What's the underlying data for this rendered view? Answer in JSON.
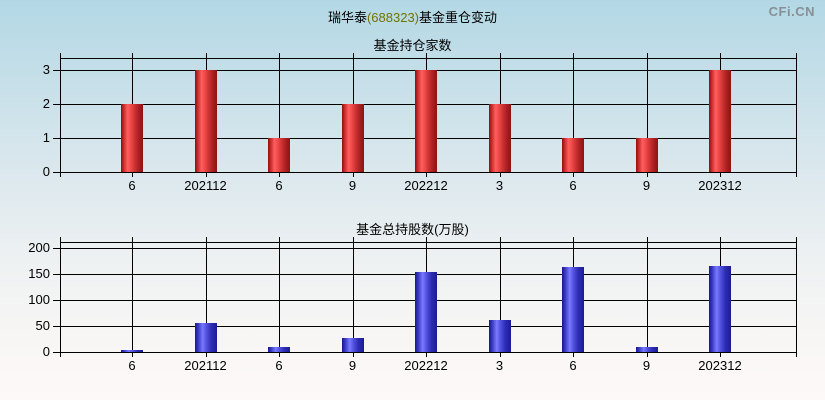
{
  "header": {
    "title_prefix": "瑞华泰",
    "title_code": "(688323)",
    "title_suffix": "基金重仓变动",
    "logo": "CFi.CN"
  },
  "colors": {
    "background_top": "#b3d8e5",
    "background_bottom": "#fdf9f8",
    "grid": "#000000",
    "title_code_accent": "#737300",
    "logo_gray": "#879097",
    "red_bar": "#e03434",
    "blue_bar": "#3a3acd"
  },
  "chart_data": [
    {
      "type": "bar",
      "title": "基金持仓家数",
      "categories": [
        "6",
        "202112",
        "6",
        "9",
        "202212",
        "3",
        "6",
        "9",
        "202312"
      ],
      "values": [
        2,
        3,
        1,
        2,
        3,
        2,
        1,
        1,
        3
      ],
      "xlabel": "",
      "ylabel": "",
      "ylim": [
        0,
        3
      ],
      "yticks": [
        0,
        1,
        2,
        3
      ],
      "grid": "on",
      "legend": "none",
      "bar_style": "red"
    },
    {
      "type": "bar",
      "title": "基金总持股数(万股)",
      "categories": [
        "6",
        "202112",
        "6",
        "9",
        "202212",
        "3",
        "6",
        "9",
        "202312"
      ],
      "values": [
        2,
        56,
        10,
        27,
        153,
        61,
        163,
        10,
        166
      ],
      "xlabel": "",
      "ylabel": "",
      "ylim": [
        0,
        200
      ],
      "yticks": [
        0,
        50,
        100,
        150,
        200
      ],
      "grid": "on",
      "legend": "none",
      "bar_style": "blue"
    }
  ]
}
